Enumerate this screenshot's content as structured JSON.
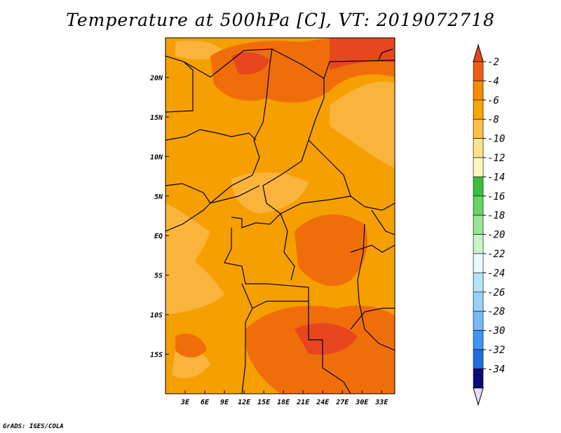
{
  "title": "Temperature at 500hPa [C], VT: 2019072718",
  "credit": "GrADS: IGES/COLA",
  "map": {
    "lon_range": [
      0,
      35
    ],
    "lat_range": [
      -20,
      25
    ],
    "lon_ticks": [
      {
        "value": 3,
        "label": "3E"
      },
      {
        "value": 6,
        "label": "6E"
      },
      {
        "value": 9,
        "label": "9E"
      },
      {
        "value": 12,
        "label": "12E"
      },
      {
        "value": 15,
        "label": "15E"
      },
      {
        "value": 18,
        "label": "18E"
      },
      {
        "value": 21,
        "label": "21E"
      },
      {
        "value": 24,
        "label": "24E"
      },
      {
        "value": 27,
        "label": "27E"
      },
      {
        "value": 30,
        "label": "30E"
      },
      {
        "value": 33,
        "label": "33E"
      }
    ],
    "lat_ticks": [
      {
        "value": 20,
        "label": "20N"
      },
      {
        "value": 15,
        "label": "15N"
      },
      {
        "value": 10,
        "label": "10N"
      },
      {
        "value": 5,
        "label": "5N"
      },
      {
        "value": 0,
        "label": "EQ"
      },
      {
        "value": -5,
        "label": "5S"
      },
      {
        "value": -10,
        "label": "10S"
      },
      {
        "value": -15,
        "label": "15S"
      }
    ]
  },
  "colorbar": {
    "levels": [
      {
        "label": "-2",
        "color": "#f05a14"
      },
      {
        "label": "-4",
        "color": "#f58c00"
      },
      {
        "label": "-6",
        "color": "#faa500"
      },
      {
        "label": "-8",
        "color": "#fcc044"
      },
      {
        "label": "-10",
        "color": "#fde28a"
      },
      {
        "label": "-12",
        "color": "#fff5be"
      },
      {
        "label": "-14",
        "color": "#3ac03c"
      },
      {
        "label": "-16",
        "color": "#64d664"
      },
      {
        "label": "-18",
        "color": "#96e696"
      },
      {
        "label": "-20",
        "color": "#c8f5c8"
      },
      {
        "label": "-22",
        "color": "#e6faff"
      },
      {
        "label": "-24",
        "color": "#b4e4fa"
      },
      {
        "label": "-26",
        "color": "#96d2fa"
      },
      {
        "label": "-28",
        "color": "#78b9fa"
      },
      {
        "label": "-30",
        "color": "#3c96f5"
      },
      {
        "label": "-32",
        "color": "#1e6edc"
      },
      {
        "label": "-34",
        "color": "#0a50c8"
      }
    ],
    "top_color": "#e8461e",
    "bottom_colors": [
      "#0a0a78",
      "#e0e0fa"
    ]
  },
  "field_colors": {
    "c2": "#e8461e",
    "c4": "#f06e0a",
    "c6": "#f5a000",
    "c8": "#fab43c",
    "c10": "#fdd25a"
  }
}
